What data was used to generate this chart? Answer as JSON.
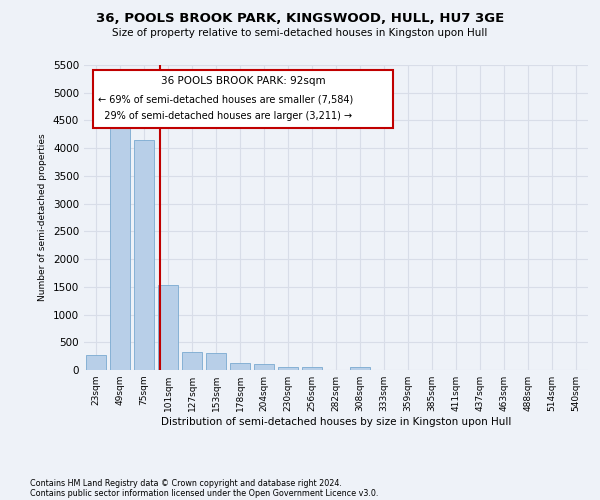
{
  "title": "36, POOLS BROOK PARK, KINGSWOOD, HULL, HU7 3GE",
  "subtitle": "Size of property relative to semi-detached houses in Kingston upon Hull",
  "xlabel": "Distribution of semi-detached houses by size in Kingston upon Hull",
  "ylabel": "Number of semi-detached properties",
  "footnote1": "Contains HM Land Registry data © Crown copyright and database right 2024.",
  "footnote2": "Contains public sector information licensed under the Open Government Licence v3.0.",
  "categories": [
    "23sqm",
    "49sqm",
    "75sqm",
    "101sqm",
    "127sqm",
    "153sqm",
    "178sqm",
    "204sqm",
    "230sqm",
    "256sqm",
    "282sqm",
    "308sqm",
    "333sqm",
    "359sqm",
    "385sqm",
    "411sqm",
    "437sqm",
    "463sqm",
    "488sqm",
    "514sqm",
    "540sqm"
  ],
  "values": [
    270,
    4380,
    4150,
    1530,
    320,
    310,
    120,
    100,
    60,
    50,
    0,
    60,
    0,
    0,
    0,
    0,
    0,
    0,
    0,
    0,
    0
  ],
  "bar_color": "#b8cfe8",
  "bar_edge_color": "#7aaad0",
  "ylim": [
    0,
    5500
  ],
  "yticks": [
    0,
    500,
    1000,
    1500,
    2000,
    2500,
    3000,
    3500,
    4000,
    4500,
    5000,
    5500
  ],
  "property_label": "36 POOLS BROOK PARK: 92sqm",
  "pct_smaller": 69,
  "count_smaller": 7584,
  "pct_larger": 29,
  "count_larger": 3211,
  "vline_bin_index": 2.67,
  "annotation_box_color": "#c00000",
  "background_color": "#eef2f8",
  "grid_color": "#d8dde8"
}
